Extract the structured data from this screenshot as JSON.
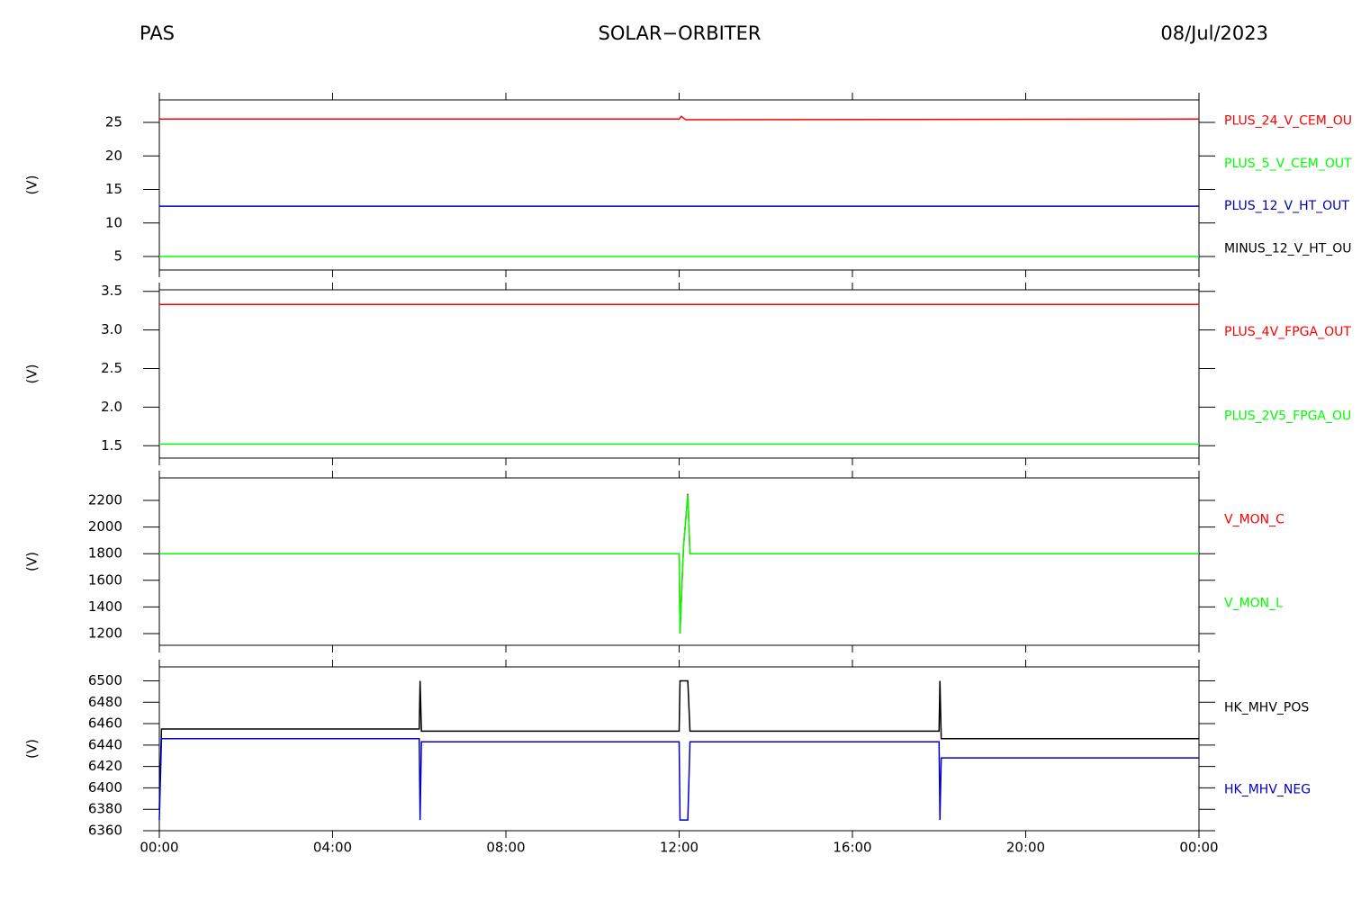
{
  "header": {
    "left": "PAS",
    "center": "SOLAR−ORBITER",
    "right": "08/Jul/2023"
  },
  "chart_data": [
    {
      "type": "line",
      "ylabel": "(V)",
      "xlim": [
        0,
        24
      ],
      "ylim": [
        2.99,
        28.36
      ],
      "yticks": [
        5,
        10,
        15,
        20,
        25
      ],
      "x": [
        0,
        12,
        12.05,
        12.15,
        24
      ],
      "series": [
        {
          "name": "PLUS_24_V_CEM_OU",
          "color": "#ff0000",
          "values": [
            25.5,
            25.5,
            25.9,
            25.4,
            25.5
          ]
        },
        {
          "name": "PLUS_5_V_CEM_OUT",
          "color": "#00ff00",
          "values": [
            5.0,
            5.0,
            5.0,
            5.0,
            5.0
          ]
        },
        {
          "name": "PLUS_12_V_HT_OUT",
          "color": "#0000aa",
          "values": [
            12.5,
            12.5,
            12.5,
            12.5,
            12.5
          ]
        },
        {
          "name": "MINUS_12_V_HT_OU",
          "color": "#000000",
          "values": [
            null,
            null,
            null,
            null,
            null
          ]
        }
      ]
    },
    {
      "type": "line",
      "ylabel": "(V)",
      "xlim": [
        0,
        24
      ],
      "ylim": [
        1.34,
        3.52
      ],
      "yticks": [
        {
          "value": 1.5,
          "label": "1.5"
        },
        {
          "value": 2,
          "label": "2.0"
        },
        {
          "value": 2.5,
          "label": "2.5"
        },
        {
          "value": 3,
          "label": "3.0"
        },
        {
          "value": 3.5,
          "label": "3.5"
        }
      ],
      "x": [
        0,
        24
      ],
      "series": [
        {
          "name": "PLUS_4V_FPGA_OUT",
          "color": "#ff0000",
          "values": [
            3.33,
            3.33
          ]
        },
        {
          "name": "PLUS_2V5_FPGA_OU",
          "color": "#00ff00",
          "values": [
            1.52,
            1.52
          ]
        }
      ]
    },
    {
      "type": "line",
      "ylabel": "(V)",
      "xlim": [
        0,
        24
      ],
      "ylim": [
        1112,
        2369
      ],
      "yticks": [
        1200,
        1400,
        1600,
        1800,
        2000,
        2200
      ],
      "x": [
        0,
        12,
        12.02,
        12.1,
        12.2,
        12.25,
        24
      ],
      "series": [
        {
          "name": "V_MON_C",
          "color": "#ff0000",
          "values": [
            1800,
            1800,
            1200,
            1850,
            2250,
            1800,
            1800
          ]
        },
        {
          "name": "V_MON_L",
          "color": "#00ff00",
          "values": [
            1800,
            1800,
            1200,
            1850,
            2240,
            1800,
            1800
          ]
        }
      ]
    },
    {
      "type": "line",
      "ylabel": "(V)",
      "xlim": [
        0,
        24
      ],
      "ylim": [
        6360,
        6513
      ],
      "yticks": [
        6360,
        6380,
        6400,
        6420,
        6440,
        6460,
        6480,
        6500
      ],
      "xticks": [
        {
          "value": 0,
          "label": "00:00"
        },
        {
          "value": 4,
          "label": "04:00"
        },
        {
          "value": 8,
          "label": "08:00"
        },
        {
          "value": 12,
          "label": "12:00"
        },
        {
          "value": 16,
          "label": "16:00"
        },
        {
          "value": 20,
          "label": "20:00"
        },
        {
          "value": 24,
          "label": "00:00"
        }
      ],
      "x": [
        0,
        0.05,
        6.0,
        6.02,
        6.05,
        12.0,
        12.02,
        12.2,
        12.25,
        18.0,
        18.02,
        18.05,
        24
      ],
      "series": [
        {
          "name": "HK_MHV_POS",
          "color": "#000000",
          "values": [
            6380,
            6455,
            6455,
            6500,
            6453,
            6453,
            6500,
            6500,
            6453,
            6453,
            6500,
            6446,
            6446
          ]
        },
        {
          "name": "HK_MHV_NEG",
          "color": "#0000cc",
          "values": [
            6370,
            6446,
            6446,
            6370,
            6443,
            6443,
            6370,
            6370,
            6443,
            6443,
            6370,
            6428,
            6428
          ]
        }
      ]
    }
  ]
}
